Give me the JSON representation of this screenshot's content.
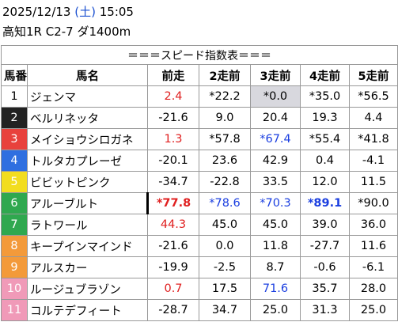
{
  "header": {
    "date": "2025/12/13",
    "weekday": "(土)",
    "time": "15:05",
    "race": "高知1R C2-7 ダ1400m"
  },
  "table": {
    "title": "＝＝＝スピード指数表＝＝＝",
    "columns": [
      "馬番",
      "馬名",
      "前走",
      "2走前",
      "3走前",
      "4走前",
      "5走前"
    ],
    "rows": [
      [
        "1",
        "ジェンマ",
        "2.4",
        "*22.2",
        "*0.0",
        "*35.0",
        "*56.5"
      ],
      [
        "2",
        "ベルリネッタ",
        "-21.6",
        "9.0",
        "20.4",
        "19.3",
        "4.4"
      ],
      [
        "3",
        "メイショウシロガネ",
        "1.3",
        "*57.8",
        "*67.4",
        "*55.4",
        "*41.8"
      ],
      [
        "4",
        "トルタカプレーゼ",
        "-20.1",
        "23.6",
        "42.9",
        "0.4",
        "-4.1"
      ],
      [
        "5",
        "ビビットピンク",
        "-34.7",
        "-22.8",
        "33.5",
        "12.0",
        "11.5"
      ],
      [
        "6",
        "アルーブルト",
        "*77.8",
        "*78.6",
        "*70.3",
        "*89.1",
        "*90.0"
      ],
      [
        "7",
        "ラトワール",
        "44.3",
        "45.0",
        "45.0",
        "39.0",
        "36.0"
      ],
      [
        "8",
        "キープインマインド",
        "-21.6",
        "0.0",
        "11.8",
        "-27.7",
        "11.6"
      ],
      [
        "9",
        "アルスカー",
        "-19.9",
        "-2.5",
        "8.7",
        "-0.6",
        "-6.1"
      ],
      [
        "10",
        "ルージュブラゾン",
        "0.7",
        "17.5",
        "71.6",
        "35.7",
        "28.0"
      ],
      [
        "11",
        "コルテデフィート",
        "-28.7",
        "34.7",
        "25.0",
        "31.3",
        "25.0"
      ]
    ]
  }
}
